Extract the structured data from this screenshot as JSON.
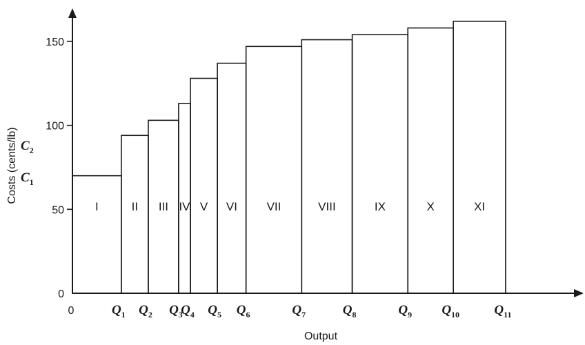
{
  "chart_data": {
    "type": "bar",
    "subtype": "step-supply-curve",
    "xlabel": "Output",
    "ylabel": "Costs (cents/lb)",
    "ylim": [
      0,
      168
    ],
    "yticks": [
      0,
      50,
      100,
      150
    ],
    "x_origin_label": "0",
    "y_extra_labels": [
      {
        "base": "C",
        "sub": "2",
        "value": 88
      },
      {
        "base": "C",
        "sub": "1",
        "value": 69
      }
    ],
    "xlim": [
      0,
      15.0
    ],
    "x_boundaries": [
      {
        "base": "Q",
        "sub": "1",
        "x": 1.45
      },
      {
        "base": "Q",
        "sub": "2",
        "x": 2.25
      },
      {
        "base": "Q",
        "sub": "3",
        "x": 3.15
      },
      {
        "base": "Q",
        "sub": "4",
        "x": 3.5
      },
      {
        "base": "Q",
        "sub": "5",
        "x": 4.3
      },
      {
        "base": "Q",
        "sub": "6",
        "x": 5.15
      },
      {
        "base": "Q",
        "sub": "7",
        "x": 6.8
      },
      {
        "base": "Q",
        "sub": "8",
        "x": 8.3
      },
      {
        "base": "Q",
        "sub": "9",
        "x": 9.95
      },
      {
        "base": "Q",
        "sub": "10",
        "x": 11.3
      },
      {
        "base": "Q",
        "sub": "11",
        "x": 12.85
      }
    ],
    "series": [
      {
        "categories": [
          "I",
          "II",
          "III",
          "IV",
          "V",
          "VI",
          "VII",
          "VIII",
          "IX",
          "X",
          "XI"
        ],
        "values": [
          70,
          94,
          103,
          113,
          128,
          137,
          147,
          151,
          154,
          158,
          162
        ],
        "category_labels": [
          "I",
          "II",
          "III",
          "IV",
          "V",
          "VI",
          "VII",
          "VIII",
          "IX",
          "X",
          "XI"
        ]
      }
    ]
  }
}
